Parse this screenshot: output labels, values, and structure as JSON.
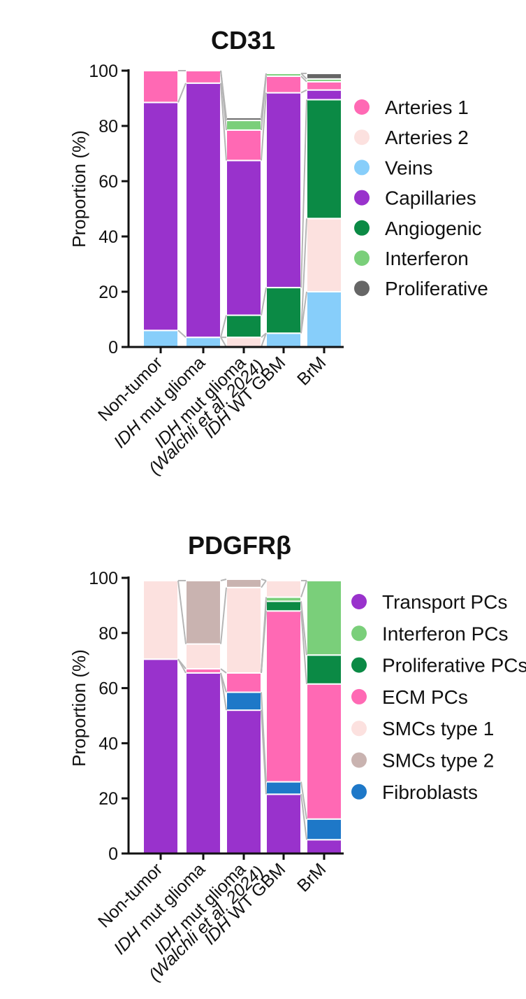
{
  "chart_data": [
    {
      "type": "bar",
      "stacked": true,
      "title": "CD31",
      "ylabel": "Proportion (%)",
      "ylim": [
        0,
        100
      ],
      "yticks": [
        "0",
        "20",
        "40",
        "60",
        "80",
        "100"
      ],
      "legend_position": "right",
      "categories": [
        {
          "label": "Non-tumor"
        },
        {
          "label": "mut glioma",
          "prefix": "IDH"
        },
        {
          "label": "mut glioma",
          "prefix": "IDH",
          "sub": "(Walchli et al. 2024)"
        },
        {
          "label": "WT GBM",
          "prefix": "IDH"
        },
        {
          "label": "BrM"
        }
      ],
      "series": [
        {
          "name": "Veins",
          "color": "#87CEFA",
          "values": [
            6,
            3.5,
            0,
            5,
            20
          ]
        },
        {
          "name": "Arteries 2",
          "color": "#FCE1DF",
          "values": [
            0,
            0,
            3.5,
            0,
            26.5
          ]
        },
        {
          "name": "Angiogenic",
          "color": "#0B8A45",
          "values": [
            0,
            0,
            8,
            16.5,
            43
          ]
        },
        {
          "name": "Capillaries",
          "color": "#9932CC",
          "values": [
            82.5,
            92,
            56,
            70.5,
            3.5
          ]
        },
        {
          "name": "Arteries 1",
          "color": "#FF69B4",
          "values": [
            11.5,
            4.5,
            11,
            6,
            3
          ]
        },
        {
          "name": "Interferon",
          "color": "#7ACF7A",
          "values": [
            0,
            0,
            3.5,
            1,
            1
          ]
        },
        {
          "name": "Proliferative",
          "color": "#666666",
          "values": [
            0,
            0,
            1,
            0,
            2
          ]
        }
      ],
      "legend": [
        "Arteries 1",
        "Arteries 2",
        "Veins",
        "Capillaries",
        "Angiogenic",
        "Interferon",
        "Proliferative"
      ]
    },
    {
      "type": "bar",
      "stacked": true,
      "title": "PDGFRβ",
      "ylabel": "Proportion (%)",
      "ylim": [
        0,
        100
      ],
      "yticks": [
        "0",
        "20",
        "40",
        "60",
        "80",
        "100"
      ],
      "legend_position": "right",
      "categories": [
        {
          "label": "Non-tumor"
        },
        {
          "label": "mut glioma",
          "prefix": "IDH"
        },
        {
          "label": "mut glioma",
          "prefix": "IDH",
          "sub": "(Walchli et al. 2024)"
        },
        {
          "label": "WT GBM",
          "prefix": "IDH"
        },
        {
          "label": "BrM"
        }
      ],
      "series": [
        {
          "name": "Transport PCs",
          "color": "#9932CC",
          "values": [
            70.5,
            65.5,
            52,
            21.5,
            5
          ]
        },
        {
          "name": "Fibroblasts",
          "color": "#1E78C8",
          "values": [
            0,
            0,
            6.5,
            4.5,
            7.5
          ]
        },
        {
          "name": "ECM PCs",
          "color": "#FF69B4",
          "values": [
            0,
            1.5,
            7,
            62,
            49
          ]
        },
        {
          "name": "Proliferative PCs",
          "color": "#0B8A45",
          "values": [
            0,
            0,
            0,
            3.5,
            10.5
          ]
        },
        {
          "name": "Interferon PCs",
          "color": "#7ACF7A",
          "values": [
            0,
            0,
            0,
            1.5,
            27
          ]
        },
        {
          "name": "SMCs type 1",
          "color": "#FCE1DF",
          "values": [
            28.5,
            9,
            31,
            6,
            0
          ]
        },
        {
          "name": "SMCs type 2",
          "color": "#C9B3B0",
          "values": [
            0,
            23,
            3,
            0,
            0
          ]
        }
      ],
      "legend": [
        "Transport PCs",
        "Interferon PCs",
        "Proliferative PCs",
        "ECM PCs",
        "SMCs type 1",
        "SMCs type 2",
        "Fibroblasts"
      ]
    }
  ]
}
